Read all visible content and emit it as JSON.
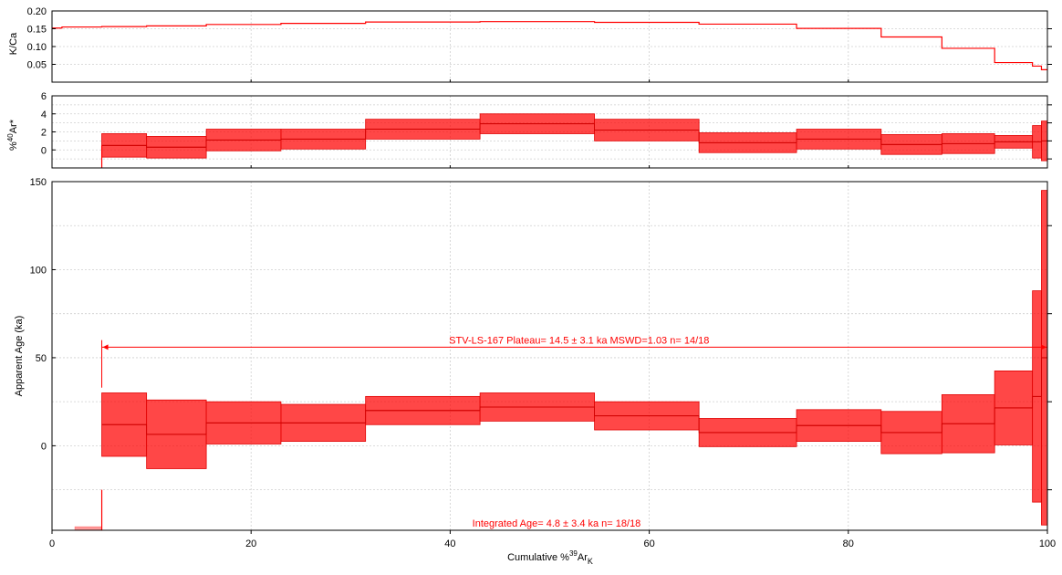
{
  "chart_data": [
    {
      "type": "step",
      "panel": "kca",
      "ylabel": "K/Ca",
      "ylim": [
        0,
        0.2
      ],
      "yticks": [
        0.05,
        0.1,
        0.15,
        0.2
      ],
      "ytick_labels": [
        "0.05",
        "0.10",
        "0.15",
        "0.20"
      ],
      "xlim": [
        0,
        100
      ],
      "grid": true,
      "color": "#ff0000",
      "steps": [
        {
          "x0": 0,
          "x1": 1.0,
          "y": 0.152
        },
        {
          "x0": 1.0,
          "x1": 5.0,
          "y": 0.155
        },
        {
          "x0": 5.0,
          "x1": 9.5,
          "y": 0.156
        },
        {
          "x0": 9.5,
          "x1": 15.5,
          "y": 0.158
        },
        {
          "x0": 15.5,
          "x1": 23.0,
          "y": 0.162
        },
        {
          "x0": 23.0,
          "x1": 31.5,
          "y": 0.165
        },
        {
          "x0": 31.5,
          "x1": 43.0,
          "y": 0.169
        },
        {
          "x0": 43.0,
          "x1": 54.5,
          "y": 0.17
        },
        {
          "x0": 54.5,
          "x1": 65.0,
          "y": 0.168
        },
        {
          "x0": 65.0,
          "x1": 74.8,
          "y": 0.163
        },
        {
          "x0": 74.8,
          "x1": 83.3,
          "y": 0.151
        },
        {
          "x0": 83.3,
          "x1": 89.4,
          "y": 0.127
        },
        {
          "x0": 89.4,
          "x1": 94.7,
          "y": 0.095
        },
        {
          "x0": 94.7,
          "x1": 98.5,
          "y": 0.055
        },
        {
          "x0": 98.5,
          "x1": 99.4,
          "y": 0.045
        },
        {
          "x0": 99.4,
          "x1": 100,
          "y": 0.035
        }
      ]
    },
    {
      "type": "step-error",
      "panel": "rad",
      "ylabel": "%40Ar*",
      "ylim": [
        -2,
        6
      ],
      "yticks": [
        0,
        2,
        4,
        6
      ],
      "ytick_labels": [
        "0",
        "2",
        "4",
        "6"
      ],
      "xlim": [
        0,
        100
      ],
      "grid": true,
      "color": "#ff0000",
      "steps": [
        {
          "x0": 5.0,
          "x1": 9.5,
          "y": 0.5,
          "err": 1.3
        },
        {
          "x0": 9.5,
          "x1": 15.5,
          "y": 0.3,
          "err": 1.2
        },
        {
          "x0": 15.5,
          "x1": 23.0,
          "y": 1.1,
          "err": 1.2
        },
        {
          "x0": 23.0,
          "x1": 31.5,
          "y": 1.2,
          "err": 1.1
        },
        {
          "x0": 31.5,
          "x1": 43.0,
          "y": 2.3,
          "err": 1.1
        },
        {
          "x0": 43.0,
          "x1": 54.5,
          "y": 2.9,
          "err": 1.1
        },
        {
          "x0": 54.5,
          "x1": 65.0,
          "y": 2.2,
          "err": 1.2
        },
        {
          "x0": 65.0,
          "x1": 74.8,
          "y": 0.8,
          "err": 1.1
        },
        {
          "x0": 74.8,
          "x1": 83.3,
          "y": 1.2,
          "err": 1.1
        },
        {
          "x0": 83.3,
          "x1": 89.4,
          "y": 0.6,
          "err": 1.1
        },
        {
          "x0": 89.4,
          "x1": 94.7,
          "y": 0.7,
          "err": 1.1
        },
        {
          "x0": 94.7,
          "x1": 98.5,
          "y": 0.9,
          "err": 0.7
        },
        {
          "x0": 98.5,
          "x1": 99.4,
          "y": 0.9,
          "err": 1.8
        },
        {
          "x0": 99.4,
          "x1": 100,
          "y": 1.0,
          "err": 2.2
        }
      ],
      "drop_line": {
        "x": 5.0,
        "y0": -2,
        "y1": 0.5
      }
    },
    {
      "type": "age-spectrum",
      "panel": "age",
      "xlabel": "Cumulative %39ArK",
      "ylabel": "Apparent Age (ka)",
      "ylim": [
        -48,
        150
      ],
      "yticks": [
        0,
        50,
        100,
        150
      ],
      "ytick_labels": [
        "0",
        "50",
        "100",
        "150"
      ],
      "xlim": [
        0,
        100
      ],
      "xticks": [
        0,
        20,
        40,
        60,
        80,
        100
      ],
      "xtick_labels": [
        "0",
        "20",
        "40",
        "60",
        "80",
        "100"
      ],
      "grid": true,
      "color": "#ff0000",
      "excluded_steps": [
        {
          "x0": 2.3,
          "x1": 5.0,
          "y0": -48,
          "y1": -46
        }
      ],
      "steps": [
        {
          "x0": 5.0,
          "x1": 9.5,
          "y": 12,
          "err": 18
        },
        {
          "x0": 9.5,
          "x1": 15.5,
          "y": 6.5,
          "err": 19.5
        },
        {
          "x0": 15.5,
          "x1": 23.0,
          "y": 13,
          "err": 12
        },
        {
          "x0": 23.0,
          "x1": 31.5,
          "y": 13,
          "err": 10.5
        },
        {
          "x0": 31.5,
          "x1": 43.0,
          "y": 20,
          "err": 8
        },
        {
          "x0": 43.0,
          "x1": 54.5,
          "y": 22,
          "err": 8
        },
        {
          "x0": 54.5,
          "x1": 65.0,
          "y": 17,
          "err": 8
        },
        {
          "x0": 65.0,
          "x1": 74.8,
          "y": 7.5,
          "err": 8
        },
        {
          "x0": 74.8,
          "x1": 83.3,
          "y": 11.5,
          "err": 9
        },
        {
          "x0": 83.3,
          "x1": 89.4,
          "y": 7.5,
          "err": 12
        },
        {
          "x0": 89.4,
          "x1": 94.7,
          "y": 12.5,
          "err": 16.5
        },
        {
          "x0": 94.7,
          "x1": 98.5,
          "y": 21.5,
          "err": 21
        },
        {
          "x0": 98.5,
          "x1": 99.4,
          "y": 28,
          "err": 60
        },
        {
          "x0": 99.4,
          "x1": 100,
          "y": 50,
          "err": 95
        }
      ],
      "drop_line": {
        "x": 5.0,
        "y0": -48,
        "y1": -25
      },
      "plateau": {
        "x0": 5.0,
        "x1": 100,
        "y": 56,
        "tick_top": 60,
        "tick_bottom": 33,
        "label": "STV-LS-167 Plateau= 14.5 ± 3.1 ka MSWD=1.03 n= 14/18"
      },
      "integrated_label": "Integrated Age= 4.8 ± 3.4 ka  n= 18/18"
    }
  ]
}
